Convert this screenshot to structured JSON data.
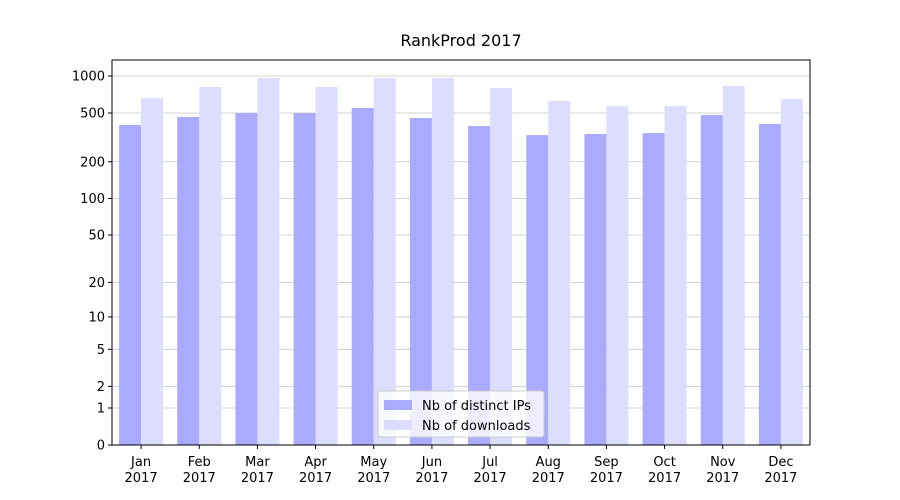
{
  "chart_data": {
    "type": "bar",
    "title": "RankProd 2017",
    "categories": [
      "Jan 2017",
      "Feb 2017",
      "Mar 2017",
      "Apr 2017",
      "May 2017",
      "Jun 2017",
      "Jul 2017",
      "Aug 2017",
      "Sep 2017",
      "Oct 2017",
      "Nov 2017",
      "Dec 2017"
    ],
    "series": [
      {
        "name": "Nb of distinct IPs",
        "color": "#aaaaff",
        "values": [
          399,
          464,
          499,
          499,
          549,
          455,
          391,
          330,
          337,
          343,
          481,
          406
        ]
      },
      {
        "name": "Nb of downloads",
        "color": "#ddddff",
        "values": [
          662,
          814,
          963,
          814,
          963,
          963,
          798,
          626,
          569,
          569,
          829,
          650
        ]
      }
    ],
    "y_scale": "log1p",
    "ylim": [
      0,
      1350
    ],
    "yticks": [
      0,
      1,
      2,
      5,
      10,
      20,
      50,
      100,
      200,
      500,
      1000
    ],
    "grid": true,
    "legend_position": "lower center"
  }
}
